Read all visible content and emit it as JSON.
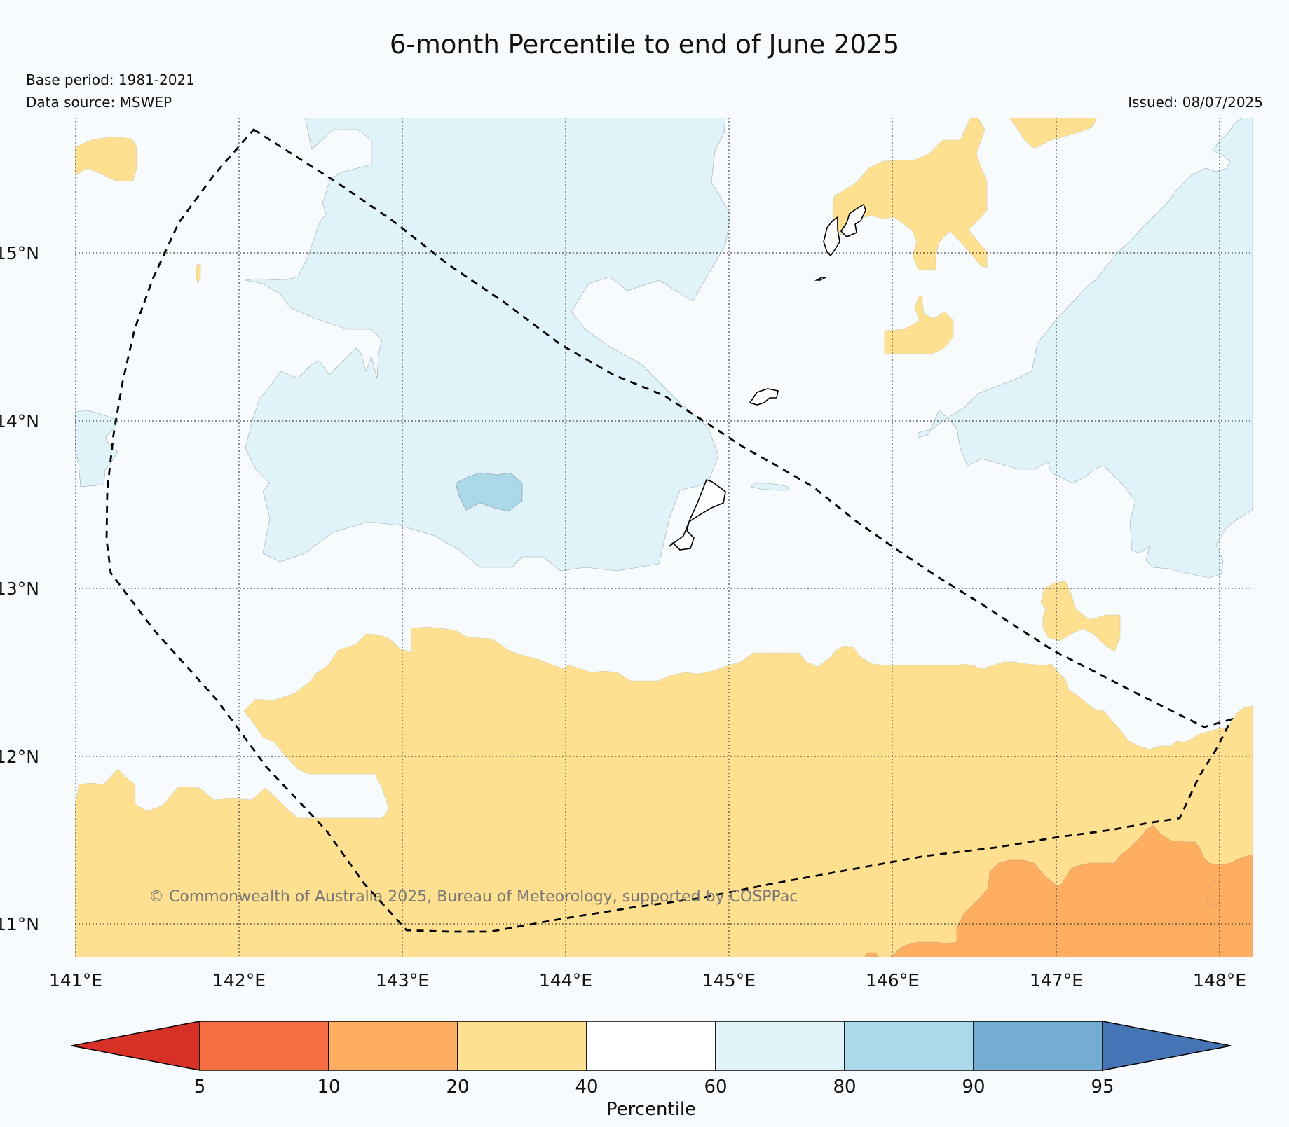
{
  "title": "6-month Percentile to end of June 2025",
  "base_period": "Base period: 1981-2021",
  "data_source": "Data source: MSWEP",
  "issued": "Issued: 08/07/2025",
  "copyright": "© Commonwealth of Australia 2025, Bureau of Meteorology, supported by COSPPac",
  "lat_labels": [
    "15°N",
    "14°N",
    "13°N",
    "12°N",
    "11°N"
  ],
  "lon_labels": [
    "141°E",
    "142°E",
    "143°E",
    "144°E",
    "145°E",
    "146°E",
    "147°E",
    "148°E"
  ],
  "colorbar": {
    "label": "Percentile",
    "ticks": [
      "5",
      "10",
      "20",
      "40",
      "60",
      "80",
      "90",
      "95"
    ],
    "colors": [
      "#d73027",
      "#f46d43",
      "#fdae61",
      "#fee090",
      "#ffffff",
      "#e0f3f8",
      "#abd9e9",
      "#74add1",
      "#4575b4"
    ]
  }
}
